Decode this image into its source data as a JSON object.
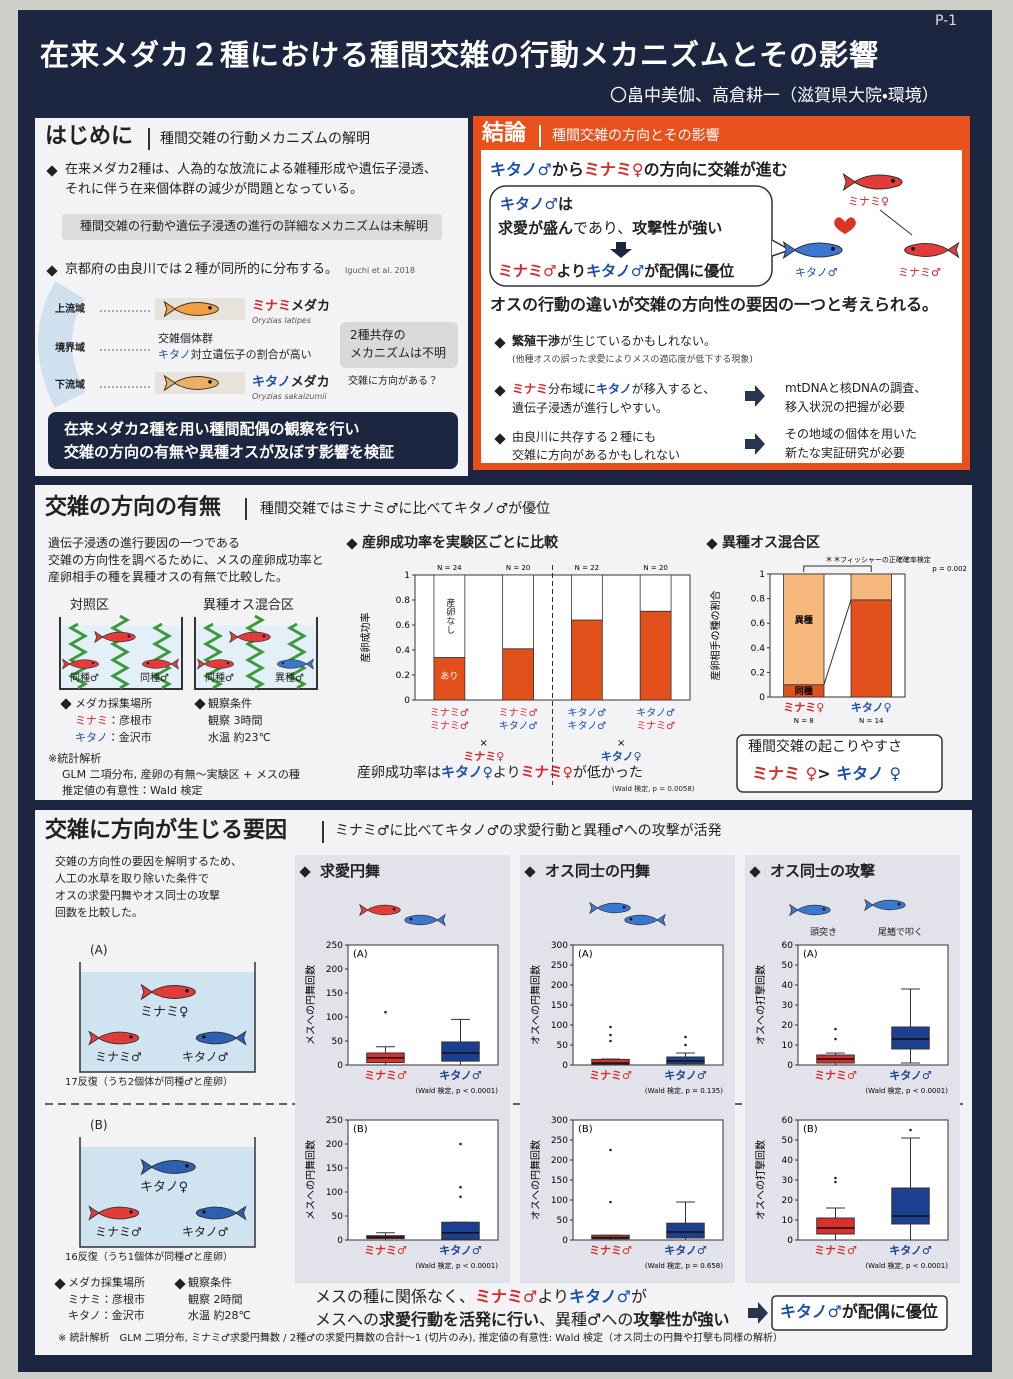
{
  "page_no": "P-1",
  "title": "在来メダカ２種における種間交雑の行動メカニズムとその影響",
  "authors": "〇畠中美伽、高倉耕一（滋賀県大院・環境）",
  "intro": {
    "heading": "はじめに",
    "subheading": "種間交雑の行動メカニズムの解明",
    "bullet1": [
      "在来メダカ2種は、人為的な放流による雑種形成や遺伝子浸透、",
      "それに伴う在来個体群の減少が問題となっている。"
    ],
    "note": "種間交雑の行動や遺伝子浸透の進行の詳細なメカニズムは未解明",
    "bullet2": "京都府の由良川では２種が同所的に分布する。",
    "citation": "Iguchi et al. 2018",
    "zones": [
      "上流域",
      "境界域",
      "下流域"
    ],
    "fish1": {
      "name": [
        "ミナミ",
        "メダカ"
      ],
      "scientific": "Oryzias latipes"
    },
    "hybrid": {
      "line1": "交雑個体群",
      "line2": [
        "キタノ",
        "対立遺伝子の割合が高い"
      ]
    },
    "fish2": {
      "name": [
        "キタノ",
        "メダカ"
      ],
      "scientific": "Oryzias sakaizumii"
    },
    "question_box": [
      "2種共存の",
      "メカニズムは不明"
    ],
    "question": "交雑に方向がある？",
    "summary": [
      "在来メダカ2種を用い種間配偶の観察を行い",
      "交雑の方向の有無や異種オスが及ぼす影響を検証"
    ]
  },
  "conclusion": {
    "heading": "結論",
    "subheading": "種間交雑の方向とその影響",
    "lead": [
      "キタノ♂",
      "から",
      "ミナミ♀",
      "の方向に交雑が進む"
    ],
    "bubble": {
      "line1": [
        "キタノ♂",
        "は"
      ],
      "line2": [
        "求愛が盛ん",
        "であり、",
        "攻撃性が強い"
      ],
      "line3": [
        "ミナミ♂",
        "より",
        "キタノ♂",
        "が配偶に優位"
      ]
    },
    "diagram": {
      "female": "ミナミ♀",
      "male1": "キタノ♂",
      "male2": "ミナミ♂"
    },
    "statement": [
      "オスの行動の違い",
      "が交雑の方向性の要因の一つと考えられる。"
    ],
    "point1": {
      "line1": [
        "繁殖干渉",
        "が生じているかもしれない。"
      ],
      "line2": "(他種オスの誤った求愛によりメスの適応度が低下する現象)"
    },
    "point2": {
      "line1": [
        "ミナミ",
        "分布域に",
        "キタノ",
        "が移入すると、"
      ],
      "line2": "遺伝子浸透が進行しやすい。",
      "action": [
        "mtDNAと核DNAの調査、",
        "移入状況の把握が必要"
      ]
    },
    "point3": {
      "line1": "由良川に共存する２種にも",
      "line2": "交雑に方向があるかもしれない",
      "action": [
        "その地域の個体を用いた",
        "新たな実証研究が必要"
      ]
    }
  },
  "direction": {
    "heading": "交雑の方向の有無",
    "subheading": "種間交雑ではミナミ♂に比べてキタノ♂が優位",
    "description": [
      "遺伝子浸透の進行要因の一つである",
      "交雑の方向性を調べるために、メスの産卵成功率と",
      "産卵相手の種を異種オスの有無で比較した。"
    ],
    "tanks": [
      {
        "title": "対照区",
        "labels": [
          "同種♂",
          "同種♂"
        ]
      },
      {
        "title": "異種オス混合区",
        "labels": [
          "同種♂",
          "異種♂"
        ]
      }
    ],
    "sites": {
      "title": "メダカ採集場所",
      "minami": [
        "ミナミ",
        "：彦根市"
      ],
      "kitano": [
        "キタノ",
        "：金沢市"
      ]
    },
    "conditions": {
      "title": "観察条件",
      "lines": [
        "観察 3時間",
        "水温 約23℃"
      ]
    },
    "statistics": [
      "※統計解析",
      "GLM 二項分布, 産卵の有無〜実験区 + メスの種",
      "推定値の有意性：Wald 検定"
    ]
  },
  "factors": {
    "heading": "交雑に方向が生じる要因",
    "subheading": "ミナミ♂に比べてキタノ♂の求愛行動と異種♂への攻撃が活発",
    "description": [
      "交雑の方向性の要因を解明するため、",
      "人工の水草を取り除いた条件で",
      "オスの求愛円舞やオス同士の攻撃",
      "回数を比較した。"
    ],
    "setups": [
      {
        "label": "(A)",
        "female": "ミナミ♀",
        "males": [
          "ミナミ♂",
          "キタノ♂"
        ],
        "replicates": "17反復（うち2個体が同種♂と産卵）"
      },
      {
        "label": "(B)",
        "female": "キタノ♀",
        "males": [
          "ミナミ♂",
          "キタノ♂"
        ],
        "replicates": "16反復（うち1個体が同種♂と産卵）"
      }
    ],
    "sites": {
      "title": "メダカ採集場所",
      "lines": [
        "ミナミ：彦根市",
        "キタノ：金沢市"
      ]
    },
    "conditions": {
      "title": "観察条件",
      "lines": [
        "観察 2時間",
        "水温 約28℃"
      ]
    },
    "behaviors": [
      "求愛円舞",
      "オス同士の円舞",
      "オス同士の攻撃"
    ],
    "attack_types": [
      "頭突き",
      "尾鰭で叩く"
    ],
    "finding": {
      "line1": [
        "メスの種に関係なく、",
        "ミナミ♂",
        "より",
        "キタノ♂",
        "が"
      ],
      "line2": [
        "メスへの",
        "求愛行動を活発に行い",
        "、異種♂への",
        "攻撃性が強い"
      ]
    },
    "result": [
      "キタノ♂",
      "が配偶に優位"
    ],
    "footnote": "※ 統計解析　GLM 二項分布, ミナミ♂求愛円舞数 / 2種♂の求愛円舞数の合計〜1 (切片のみ), 推定値の有意性: Wald 検定（オス同士の円舞や打撃も同様の解析）"
  },
  "chart_data": [
    {
      "type": "bar",
      "title": "産卵成功率を実験区ごとに比較",
      "ylabel": "産卵成功率",
      "ylim": [
        0,
        1
      ],
      "yticks": [
        0,
        0.2,
        0.4,
        0.6,
        0.8,
        1
      ],
      "categories": [
        [
          "ミナミ♂",
          "ミナミ♂"
        ],
        [
          "ミナミ♂",
          "キタノ♂"
        ],
        [
          "キタノ♂",
          "キタノ♂"
        ],
        [
          "キタノ♂",
          "ミナミ♂"
        ]
      ],
      "n_labels": [
        "N = 24",
        "N = 20",
        "N = 22",
        "N = 20"
      ],
      "groups": [
        {
          "cross": "×",
          "female": "ミナミ♀"
        },
        {
          "cross": "×",
          "female": "キタノ♀"
        }
      ],
      "series": [
        {
          "name": "あり",
          "color": "#e2501c",
          "values": [
            0.34,
            0.41,
            0.64,
            0.71
          ]
        },
        {
          "name": "産卵なし",
          "color": "#ffffff",
          "values": [
            0.66,
            0.59,
            0.36,
            0.29
          ]
        }
      ],
      "conclusion": [
        "産卵成功率は",
        "キタノ♀",
        "より",
        "ミナミ♀",
        "が低かった"
      ],
      "stat": "(Wald 検定, p = 0.0058)"
    },
    {
      "type": "stacked_bar",
      "title": "異種オス混合区",
      "ylabel": "産卵相手の種の割合",
      "ylim": [
        0,
        1
      ],
      "yticks": [
        0,
        0.2,
        0.4,
        0.6,
        0.8,
        1
      ],
      "categories": [
        "ミナミ♀",
        "キタノ♀"
      ],
      "n_labels": [
        "N = 8",
        "N = 14"
      ],
      "series": [
        {
          "name": "同種",
          "color": "#e2501c",
          "values": [
            0.1,
            0.79
          ]
        },
        {
          "name": "異種",
          "color": "#f6b77c",
          "values": [
            0.9,
            0.21
          ]
        }
      ],
      "significance": "＊＊",
      "test": "フィッシャーの正確確率検定",
      "p": "p = 0.002",
      "summary": {
        "title": "種間交雑の起こりやすさ",
        "result": [
          "ミナミ ♀",
          "> ",
          "キタノ ♀"
        ]
      }
    },
    {
      "type": "box",
      "panel": "(A)",
      "ylabel": "メスへの円舞回数",
      "ylim": [
        0,
        250
      ],
      "yticks": [
        0,
        50,
        100,
        150,
        200,
        250
      ],
      "categories": [
        "ミナミ♂",
        "キタノ♂"
      ],
      "colors": [
        "#d8302c",
        "#1d3f8f"
      ],
      "boxes": [
        {
          "min": 0,
          "q1": 5,
          "median": 15,
          "q3": 25,
          "max": 38,
          "outliers": [
            110
          ]
        },
        {
          "min": 0,
          "q1": 8,
          "median": 25,
          "q3": 48,
          "max": 95,
          "outliers": []
        }
      ],
      "stat": "(Wald 検定, p < 0.0001)"
    },
    {
      "type": "box",
      "panel": "(A)",
      "ylabel": "オスへの円舞回数",
      "ylim": [
        0,
        300
      ],
      "yticks": [
        0,
        50,
        100,
        150,
        200,
        250,
        300
      ],
      "categories": [
        "ミナミ♂",
        "キタノ♂"
      ],
      "colors": [
        "#d8302c",
        "#1d3f8f"
      ],
      "boxes": [
        {
          "min": 0,
          "q1": 2,
          "median": 5,
          "q3": 14,
          "max": 15,
          "outliers": [
            60,
            75,
            95
          ]
        },
        {
          "min": 0,
          "q1": 3,
          "median": 10,
          "q3": 20,
          "max": 30,
          "outliers": [
            50,
            70
          ]
        }
      ],
      "stat": "(Wald 検定, p = 0.135)"
    },
    {
      "type": "box",
      "panel": "(A)",
      "ylabel": "オスへの打撃回数",
      "ylim": [
        0,
        60
      ],
      "yticks": [
        0,
        10,
        20,
        30,
        40,
        50,
        60
      ],
      "categories": [
        "ミナミ♂",
        "キタノ♂"
      ],
      "colors": [
        "#d8302c",
        "#1d3f8f"
      ],
      "boxes": [
        {
          "min": 0,
          "q1": 1,
          "median": 3,
          "q3": 5,
          "max": 6,
          "outliers": [
            13,
            18
          ]
        },
        {
          "min": 1,
          "q1": 8,
          "median": 13,
          "q3": 19,
          "max": 38,
          "outliers": []
        }
      ],
      "stat": "(Wald 検定, p < 0.0001)"
    },
    {
      "type": "box",
      "panel": "(B)",
      "ylabel": "メスへの円舞回数",
      "ylim": [
        0,
        250
      ],
      "yticks": [
        0,
        50,
        100,
        150,
        200,
        250
      ],
      "categories": [
        "ミナミ♂",
        "キタノ♂"
      ],
      "colors": [
        "#d8302c",
        "#1d3f8f"
      ],
      "boxes": [
        {
          "min": 0,
          "q1": 3,
          "median": 6,
          "q3": 9,
          "max": 15,
          "outliers": []
        },
        {
          "min": 0,
          "q1": 2,
          "median": 15,
          "q3": 37,
          "max": 37,
          "outliers": [
            90,
            110,
            200
          ]
        }
      ],
      "stat": "(Wald 検定, p < 0.0001)"
    },
    {
      "type": "box",
      "panel": "(B)",
      "ylabel": "オスへの円舞回数",
      "ylim": [
        0,
        300
      ],
      "yticks": [
        0,
        50,
        100,
        150,
        200,
        250,
        300
      ],
      "categories": [
        "ミナミ♂",
        "キタノ♂"
      ],
      "colors": [
        "#d8302c",
        "#1d3f8f"
      ],
      "boxes": [
        {
          "min": 0,
          "q1": 3,
          "median": 6,
          "q3": 12,
          "max": 12,
          "outliers": [
            95,
            225
          ]
        },
        {
          "min": 0,
          "q1": 5,
          "median": 20,
          "q3": 42,
          "max": 95,
          "outliers": []
        }
      ],
      "stat": "(Wald 検定, p = 0.658)"
    },
    {
      "type": "box",
      "panel": "(B)",
      "ylabel": "オスへの打撃回数",
      "ylim": [
        0,
        60
      ],
      "yticks": [
        0,
        10,
        20,
        30,
        40,
        50,
        60
      ],
      "categories": [
        "ミナミ♂",
        "キタノ♂"
      ],
      "colors": [
        "#d8302c",
        "#1d3f8f"
      ],
      "boxes": [
        {
          "min": 0,
          "q1": 3,
          "median": 6,
          "q3": 11,
          "max": 16,
          "outliers": [
            29,
            31
          ]
        },
        {
          "min": 0,
          "q1": 8,
          "median": 12,
          "q3": 26,
          "max": 51,
          "outliers": [
            55
          ]
        }
      ],
      "stat": "(Wald 検定, p < 0.0001)"
    }
  ]
}
